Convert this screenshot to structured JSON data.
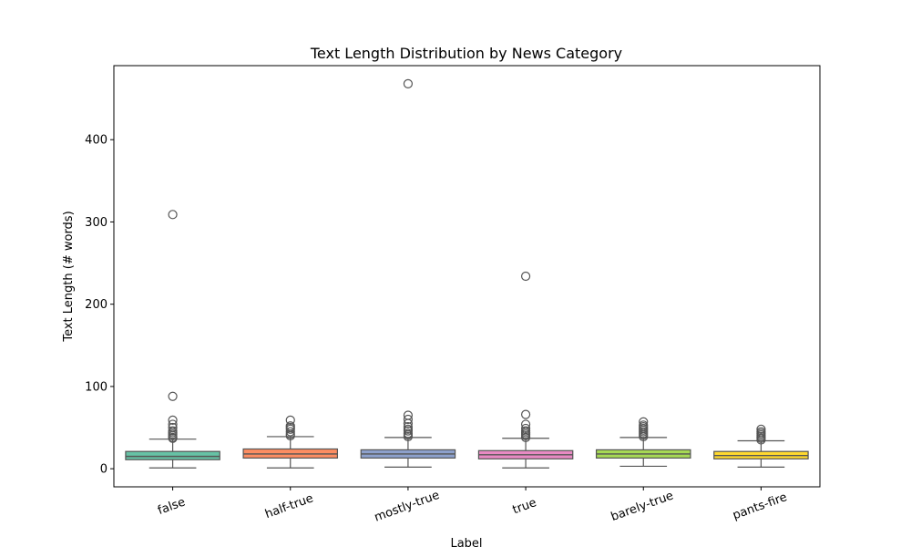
{
  "chart_data": {
    "type": "box",
    "title": "Text Length Distribution by News Category",
    "xlabel": "Label",
    "ylabel": "Text Length (# words)",
    "ylim": [
      -22,
      490
    ],
    "yticks": [
      0,
      100,
      200,
      300,
      400
    ],
    "grid": false,
    "legend": "none",
    "categories": [
      "false",
      "half-true",
      "mostly-true",
      "true",
      "barely-true",
      "pants-fire"
    ],
    "series": [
      {
        "category": "false",
        "color": "#66c2a5",
        "whisker_low": 1,
        "q1": 11,
        "median": 15,
        "q3": 21,
        "whisker_high": 36,
        "outliers": [
          37,
          38,
          40,
          42,
          44,
          46,
          50,
          54,
          59,
          88,
          309
        ]
      },
      {
        "category": "half-true",
        "color": "#fc8d62",
        "whisker_low": 1,
        "q1": 13,
        "median": 18,
        "q3": 24,
        "whisker_high": 39,
        "outliers": [
          40,
          42,
          45,
          48,
          50,
          52,
          59
        ]
      },
      {
        "category": "mostly-true",
        "color": "#8da0cb",
        "whisker_low": 2,
        "q1": 13,
        "median": 18,
        "q3": 23,
        "whisker_high": 38,
        "outliers": [
          39,
          41,
          43,
          46,
          48,
          51,
          55,
          60,
          65,
          468
        ]
      },
      {
        "category": "true",
        "color": "#e78ac3",
        "whisker_low": 1,
        "q1": 12,
        "median": 17,
        "q3": 22,
        "whisker_high": 37,
        "outliers": [
          38,
          40,
          42,
          44,
          46,
          49,
          54,
          66,
          234
        ]
      },
      {
        "category": "barely-true",
        "color": "#a6d854",
        "whisker_low": 3,
        "q1": 13,
        "median": 18,
        "q3": 23,
        "whisker_high": 38,
        "outliers": [
          39,
          41,
          43,
          45,
          47,
          49,
          51,
          53,
          57
        ]
      },
      {
        "category": "pants-fire",
        "color": "#ffd92f",
        "whisker_low": 2,
        "q1": 12,
        "median": 16,
        "q3": 21,
        "whisker_high": 34,
        "outliers": [
          35,
          37,
          39,
          41,
          43,
          45,
          48
        ]
      }
    ]
  }
}
